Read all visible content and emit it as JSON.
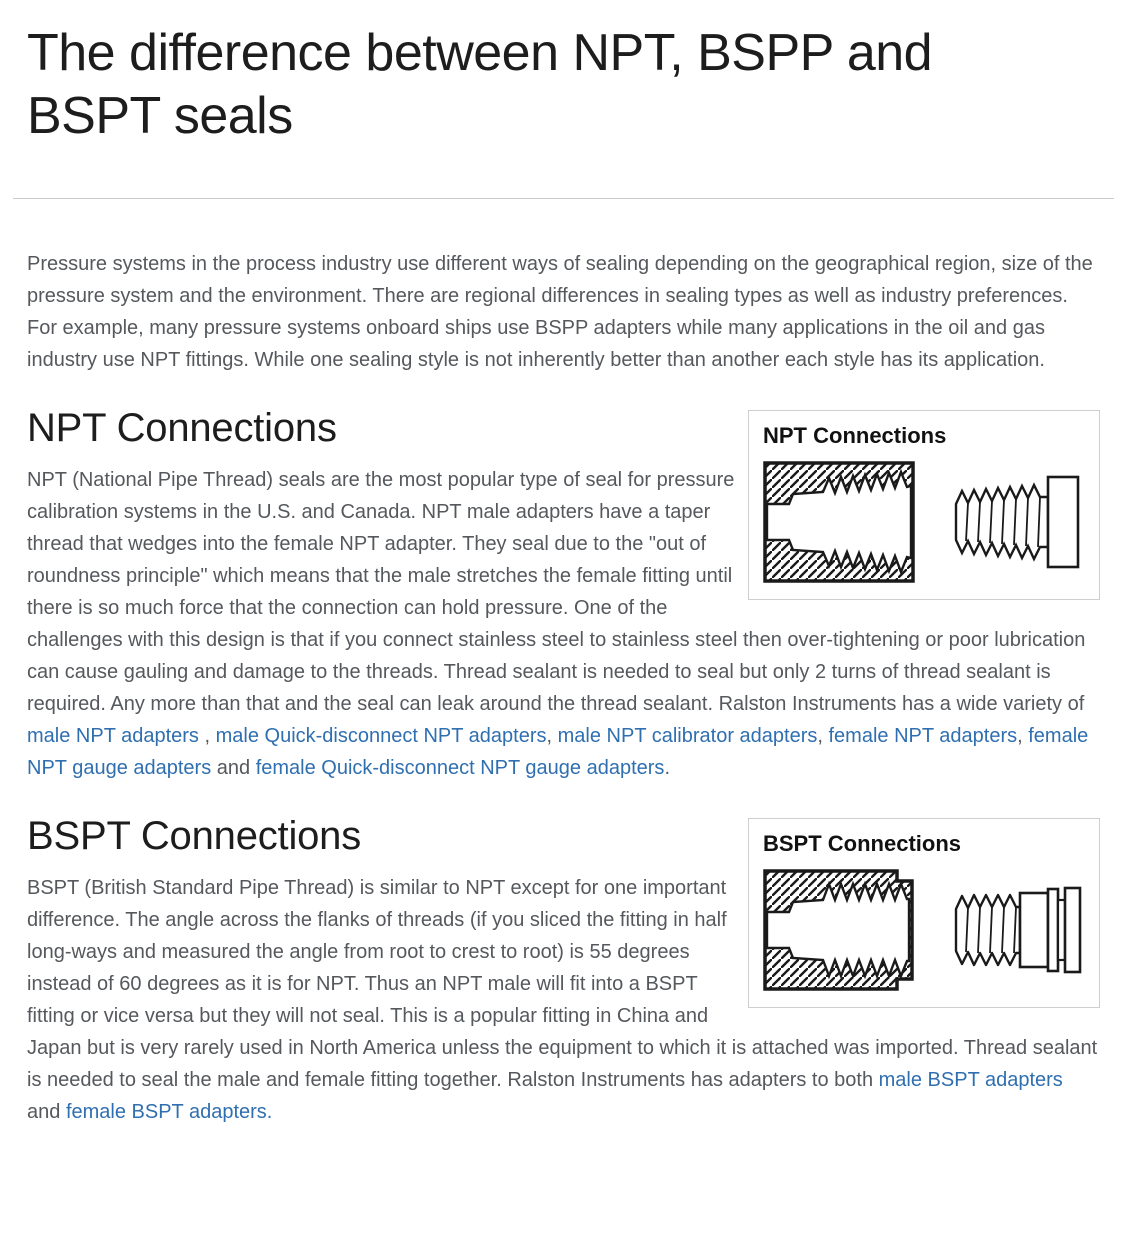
{
  "page": {
    "title": "The difference between NPT, BSPP and BSPT seals"
  },
  "intro": {
    "text": "Pressure systems in the process industry use different ways of sealing depending on the geographical region, size of the pressure system and the environment. There are regional differences in sealing types as well as industry preferences. For example, many pressure systems onboard ships use BSPP adapters while many applications in the oil and gas industry use NPT fittings. While one sealing style is not inherently better than another each style has its application."
  },
  "sections": [
    {
      "heading": "NPT Connections",
      "figure_title": "NPT Connections",
      "paragraph": [
        {
          "text": "NPT (National Pipe Thread) seals are the most popular type of seal for pressure calibration systems in the U.S. and Canada. NPT male adapters have a taper thread that wedges into the female NPT adapter. They seal due to the \"out of roundness principle\" which means that the male stretches the female fitting until there is so much force that the connection can hold pressure. One of the challenges with this design is that if you connect stainless steel to stainless steel then over-tightening or poor lubrication can cause gauling and damage to the threads. Thread sealant is needed to seal but only 2 turns of thread sealant is required. Any more than that and the seal can leak around the thread sealant. Ralston Instruments has a wide variety of ",
          "link": false
        },
        {
          "text": "male NPT adapters",
          "link": true
        },
        {
          "text": " , ",
          "link": false
        },
        {
          "text": "male Quick-disconnect NPT adapters",
          "link": true
        },
        {
          "text": ", ",
          "link": false
        },
        {
          "text": "male NPT calibrator adapters",
          "link": true
        },
        {
          "text": ", ",
          "link": false
        },
        {
          "text": "female NPT adapters",
          "link": true
        },
        {
          "text": ", ",
          "link": false
        },
        {
          "text": "female NPT gauge adapters",
          "link": true
        },
        {
          "text": " and ",
          "link": false
        },
        {
          "text": "female Quick-disconnect NPT gauge adapters",
          "link": true
        },
        {
          "text": ".",
          "link": false
        }
      ]
    },
    {
      "heading": "BSPT Connections",
      "figure_title": "BSPT Connections",
      "paragraph": [
        {
          "text": "BSPT (British Standard Pipe Thread) is similar to NPT except for one important difference. The angle across the flanks of threads (if you sliced the fitting in half long-ways and measured the angle from root to crest to root) is 55 degrees instead of 60 degrees as it is for NPT. Thus an NPT male will fit into a BSPT fitting or vice versa but they will not seal. This is a popular fitting in China and Japan but is very rarely used in North America unless the equipment to which it is attached was imported. Thread sealant is needed to seal the male and female fitting together. Ralston Instruments has adapters to both ",
          "link": false
        },
        {
          "text": "male BSPT adapters",
          "link": true
        },
        {
          "text": " and ",
          "link": false
        },
        {
          "text": "female BSPT adapters.",
          "link": true
        }
      ]
    }
  ],
  "colors": {
    "background": "#ffffff",
    "heading_text": "#1d1d1d",
    "body_text": "#55585c",
    "link": "#2f6fb0",
    "divider": "#cccccc",
    "figure_border": "#cfcfcf",
    "drawing_stroke": "#1a1a1a"
  }
}
